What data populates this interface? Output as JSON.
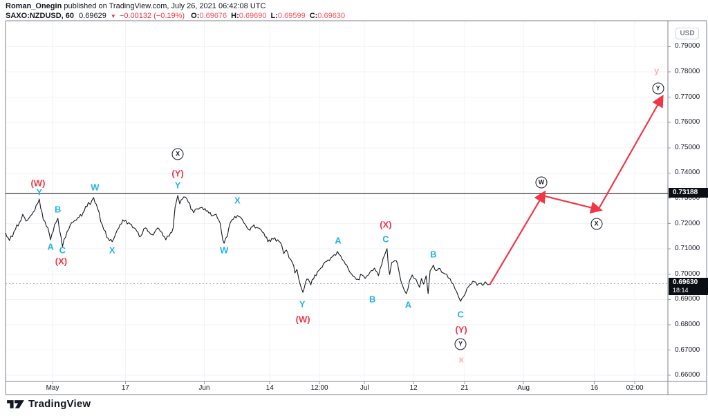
{
  "header": {
    "author": "Roman_Onegin",
    "published": "published on TradingView.com, July 26, 2021 06:42:08 UTC",
    "symbol": "SAXO:NZDUSD, 60",
    "last_price": "0.69629",
    "direction_icon": "▼",
    "change": "−0.00132 (−0.19%)",
    "ohlc": [
      {
        "label": "O:",
        "value": "0.69676"
      },
      {
        "label": "H:",
        "value": "0.69690"
      },
      {
        "label": "L:",
        "value": "0.69599"
      },
      {
        "label": "C:",
        "value": "0.69630"
      }
    ]
  },
  "axis": {
    "currency_button": "USD",
    "time_ticks": [
      {
        "label": "May",
        "t": 0.071
      },
      {
        "label": "17",
        "t": 0.181
      },
      {
        "label": "Jun",
        "t": 0.3
      },
      {
        "label": "14",
        "t": 0.399
      },
      {
        "label": "12:00",
        "t": 0.474
      },
      {
        "label": "Jul",
        "t": 0.542
      },
      {
        "label": "12",
        "t": 0.616
      },
      {
        "label": "21",
        "t": 0.693
      },
      {
        "label": "Aug",
        "t": 0.782
      },
      {
        "label": "16",
        "t": 0.889
      },
      {
        "label": "02:00",
        "t": 0.95
      }
    ]
  },
  "price_tags": {
    "level": {
      "text": "0.73188",
      "price": 0.73188
    },
    "current": {
      "text": "0.69630",
      "countdown": "18:14",
      "price": 0.6963
    }
  },
  "footer": {
    "brand": "TradingView"
  },
  "chart_data": {
    "type": "line",
    "symbol": "SAXO:NZDUSD",
    "interval": "60",
    "currency": "USD",
    "ylim": [
      0.6576,
      0.8002
    ],
    "yticks": [
      0.79,
      0.78,
      0.77,
      0.76,
      0.75,
      0.74,
      0.73,
      0.72,
      0.71,
      0.7,
      0.69,
      0.68,
      0.67,
      0.66
    ],
    "level_line": 0.73188,
    "current_price_line": 0.6963,
    "grid": "faint",
    "series": [
      {
        "name": "NZDUSD",
        "points": [
          [
            0.0,
            0.7163
          ],
          [
            0.006,
            0.7133
          ],
          [
            0.015,
            0.7177
          ],
          [
            0.021,
            0.7204
          ],
          [
            0.026,
            0.7237
          ],
          [
            0.031,
            0.721
          ],
          [
            0.038,
            0.7232
          ],
          [
            0.044,
            0.7251
          ],
          [
            0.051,
            0.7297
          ],
          [
            0.057,
            0.7215
          ],
          [
            0.064,
            0.7183
          ],
          [
            0.068,
            0.7136
          ],
          [
            0.074,
            0.7196
          ],
          [
            0.079,
            0.7221
          ],
          [
            0.086,
            0.7109
          ],
          [
            0.093,
            0.7169
          ],
          [
            0.1,
            0.7204
          ],
          [
            0.109,
            0.7223
          ],
          [
            0.117,
            0.7243
          ],
          [
            0.125,
            0.7284
          ],
          [
            0.128,
            0.7275
          ],
          [
            0.133,
            0.7303
          ],
          [
            0.139,
            0.7259
          ],
          [
            0.146,
            0.7196
          ],
          [
            0.153,
            0.7145
          ],
          [
            0.161,
            0.7128
          ],
          [
            0.169,
            0.7177
          ],
          [
            0.177,
            0.7215
          ],
          [
            0.186,
            0.7204
          ],
          [
            0.194,
            0.7183
          ],
          [
            0.204,
            0.715
          ],
          [
            0.211,
            0.7183
          ],
          [
            0.217,
            0.7166
          ],
          [
            0.223,
            0.7155
          ],
          [
            0.23,
            0.7183
          ],
          [
            0.236,
            0.7166
          ],
          [
            0.242,
            0.7136
          ],
          [
            0.247,
            0.715
          ],
          [
            0.253,
            0.7183
          ],
          [
            0.256,
            0.7264
          ],
          [
            0.26,
            0.7311
          ],
          [
            0.263,
            0.7278
          ],
          [
            0.267,
            0.7297
          ],
          [
            0.271,
            0.7305
          ],
          [
            0.276,
            0.7284
          ],
          [
            0.284,
            0.7243
          ],
          [
            0.289,
            0.7259
          ],
          [
            0.297,
            0.7264
          ],
          [
            0.305,
            0.7251
          ],
          [
            0.313,
            0.7232
          ],
          [
            0.318,
            0.7237
          ],
          [
            0.324,
            0.7202
          ],
          [
            0.328,
            0.7136
          ],
          [
            0.33,
            0.7122
          ],
          [
            0.335,
            0.715
          ],
          [
            0.339,
            0.7202
          ],
          [
            0.344,
            0.7218
          ],
          [
            0.35,
            0.7232
          ],
          [
            0.357,
            0.7218
          ],
          [
            0.36,
            0.7202
          ],
          [
            0.367,
            0.7177
          ],
          [
            0.373,
            0.7188
          ],
          [
            0.381,
            0.7183
          ],
          [
            0.39,
            0.7163
          ],
          [
            0.396,
            0.7128
          ],
          [
            0.402,
            0.7142
          ],
          [
            0.411,
            0.7136
          ],
          [
            0.417,
            0.7114
          ],
          [
            0.42,
            0.7081
          ],
          [
            0.424,
            0.7095
          ],
          [
            0.428,
            0.7065
          ],
          [
            0.433,
            0.7046
          ],
          [
            0.437,
            0.7005
          ],
          [
            0.44,
            0.7019
          ],
          [
            0.445,
            0.6958
          ],
          [
            0.449,
            0.6928
          ],
          [
            0.453,
            0.6969
          ],
          [
            0.457,
            0.698
          ],
          [
            0.461,
            0.6958
          ],
          [
            0.467,
            0.6997
          ],
          [
            0.471,
            0.701
          ],
          [
            0.476,
            0.7024
          ],
          [
            0.48,
            0.704
          ],
          [
            0.485,
            0.7051
          ],
          [
            0.491,
            0.7065
          ],
          [
            0.496,
            0.7077
          ],
          [
            0.501,
            0.709
          ],
          [
            0.506,
            0.7073
          ],
          [
            0.511,
            0.7051
          ],
          [
            0.517,
            0.7024
          ],
          [
            0.522,
            0.7002
          ],
          [
            0.527,
            0.6989
          ],
          [
            0.532,
            0.698
          ],
          [
            0.538,
            0.6997
          ],
          [
            0.543,
            0.6983
          ],
          [
            0.548,
            0.6997
          ],
          [
            0.552,
            0.7014
          ],
          [
            0.557,
            0.7024
          ],
          [
            0.563,
            0.6994
          ],
          [
            0.568,
            0.7038
          ],
          [
            0.572,
            0.7073
          ],
          [
            0.576,
            0.7101
          ],
          [
            0.578,
            0.7032
          ],
          [
            0.58,
            0.6999
          ],
          [
            0.583,
            0.7046
          ],
          [
            0.588,
            0.7054
          ],
          [
            0.592,
            0.704
          ],
          [
            0.595,
            0.6997
          ],
          [
            0.599,
            0.6958
          ],
          [
            0.602,
            0.6937
          ],
          [
            0.605,
            0.6923
          ],
          [
            0.61,
            0.6975
          ],
          [
            0.614,
            0.6997
          ],
          [
            0.618,
            0.6983
          ],
          [
            0.622,
            0.6964
          ],
          [
            0.625,
            0.6948
          ],
          [
            0.628,
            0.6983
          ],
          [
            0.631,
            0.6961
          ],
          [
            0.635,
            0.6994
          ],
          [
            0.638,
            0.6923
          ],
          [
            0.641,
            0.7014
          ],
          [
            0.646,
            0.7036
          ],
          [
            0.65,
            0.7014
          ],
          [
            0.656,
            0.7022
          ],
          [
            0.661,
            0.7005
          ],
          [
            0.666,
            0.7
          ],
          [
            0.671,
            0.6983
          ],
          [
            0.676,
            0.6961
          ],
          [
            0.681,
            0.6931
          ],
          [
            0.684,
            0.691
          ],
          [
            0.687,
            0.6893
          ],
          [
            0.691,
            0.691
          ],
          [
            0.695,
            0.6929
          ],
          [
            0.699,
            0.695
          ],
          [
            0.703,
            0.6961
          ],
          [
            0.708,
            0.697
          ],
          [
            0.712,
            0.6956
          ],
          [
            0.716,
            0.6964
          ],
          [
            0.72,
            0.6956
          ],
          [
            0.724,
            0.697
          ],
          [
            0.728,
            0.6958
          ],
          [
            0.731,
            0.6961
          ]
        ]
      }
    ],
    "projection_arrows": [
      [
        [
          0.731,
          0.6958
        ],
        [
          0.812,
          0.7316
        ]
      ],
      [
        [
          0.812,
          0.731
        ],
        [
          0.895,
          0.7256
        ]
      ],
      [
        [
          0.895,
          0.7256
        ],
        [
          0.99,
          0.7694
        ]
      ]
    ],
    "wave_labels": [
      {
        "text": "(W)",
        "style": "red",
        "t": 0.049,
        "p": 0.736
      },
      {
        "text": "Y",
        "style": "cyan",
        "t": 0.051,
        "p": 0.7325
      },
      {
        "text": "A",
        "style": "cyan",
        "t": 0.068,
        "p": 0.7109
      },
      {
        "text": "B",
        "style": "cyan",
        "t": 0.079,
        "p": 0.7256
      },
      {
        "text": "C",
        "style": "cyan",
        "t": 0.086,
        "p": 0.7095
      },
      {
        "text": "(X)",
        "style": "red",
        "t": 0.084,
        "p": 0.7051
      },
      {
        "text": "W",
        "style": "cyan",
        "t": 0.135,
        "p": 0.7344
      },
      {
        "text": "X",
        "style": "cyan",
        "t": 0.161,
        "p": 0.7095
      },
      {
        "text": "X",
        "style": "circle",
        "t": 0.26,
        "p": 0.7475
      },
      {
        "text": "(Y)",
        "style": "red",
        "t": 0.26,
        "p": 0.7398
      },
      {
        "text": "Y",
        "style": "cyan",
        "t": 0.26,
        "p": 0.7352
      },
      {
        "text": "X",
        "style": "cyan",
        "t": 0.35,
        "p": 0.7292
      },
      {
        "text": "W",
        "style": "cyan",
        "t": 0.33,
        "p": 0.7095
      },
      {
        "text": "Y",
        "style": "cyan",
        "t": 0.448,
        "p": 0.6882
      },
      {
        "text": "(W)",
        "style": "red",
        "t": 0.449,
        "p": 0.6822
      },
      {
        "text": "A",
        "style": "cyan",
        "t": 0.502,
        "p": 0.7133
      },
      {
        "text": "B",
        "style": "cyan",
        "t": 0.554,
        "p": 0.6901
      },
      {
        "text": "(X)",
        "style": "red",
        "t": 0.574,
        "p": 0.7196
      },
      {
        "text": "C",
        "style": "cyan",
        "t": 0.574,
        "p": 0.7139
      },
      {
        "text": "A",
        "style": "cyan",
        "t": 0.608,
        "p": 0.6879
      },
      {
        "text": "B",
        "style": "cyan",
        "t": 0.646,
        "p": 0.7079
      },
      {
        "text": "C",
        "style": "cyan",
        "t": 0.687,
        "p": 0.6841
      },
      {
        "text": "(Y)",
        "style": "red",
        "t": 0.688,
        "p": 0.6781
      },
      {
        "text": "Y",
        "style": "circle",
        "t": 0.687,
        "p": 0.6723
      },
      {
        "text": "x",
        "style": "pink",
        "t": 0.688,
        "p": 0.6663
      },
      {
        "text": "W",
        "style": "circle",
        "t": 0.809,
        "p": 0.7363
      },
      {
        "text": "X",
        "style": "circle",
        "t": 0.892,
        "p": 0.7199
      },
      {
        "text": "Y",
        "style": "circle",
        "t": 0.985,
        "p": 0.7734
      },
      {
        "text": "y",
        "style": "pink",
        "t": 0.983,
        "p": 0.7805
      }
    ],
    "colors": {
      "line": "#16181d",
      "cyan": "#25b4e8",
      "red": "#f23645",
      "pink": "#f9aeb8",
      "circle": "#131722",
      "arrow": "#f23645",
      "grid": "#f2f3f7",
      "level_line": "#000000",
      "current_line": "#a8abb3",
      "frame": "#7d828c",
      "tick": "#9598a1"
    }
  }
}
